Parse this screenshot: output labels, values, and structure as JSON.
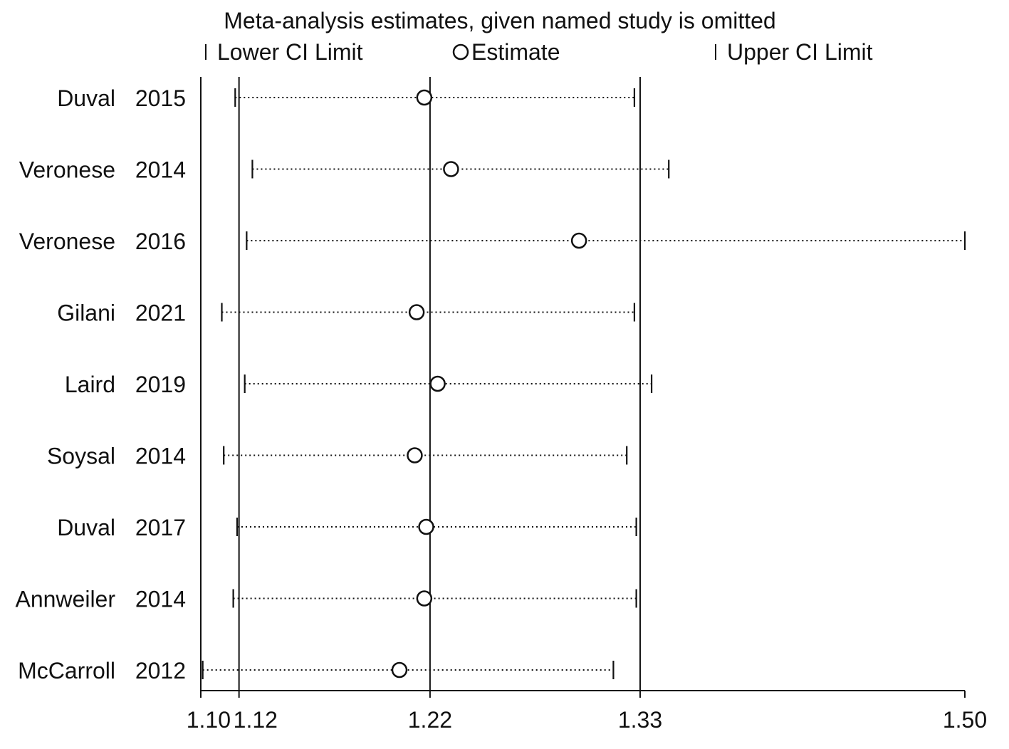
{
  "chart_data": {
    "type": "scatter",
    "title": "Meta-analysis estimates, given named study is omitted",
    "legend": {
      "lower": "Lower CI Limit",
      "estimate": "Estimate",
      "upper": "Upper CI Limit",
      "position": "top"
    },
    "x_ticks": [
      {
        "value": 1.1,
        "label": "1.10"
      },
      {
        "value": 1.12,
        "label": "1.12"
      },
      {
        "value": 1.22,
        "label": "1.22"
      },
      {
        "value": 1.33,
        "label": "1.33"
      },
      {
        "value": 1.5,
        "label": "1.50"
      }
    ],
    "xlim": [
      1.1,
      1.5
    ],
    "reference_lines": [
      1.12,
      1.22,
      1.33
    ],
    "studies": [
      {
        "name": "Duval",
        "year": "2015",
        "lower": 1.118,
        "estimate": 1.217,
        "upper": 1.327
      },
      {
        "name": "Veronese",
        "year": "2014",
        "lower": 1.127,
        "estimate": 1.231,
        "upper": 1.345
      },
      {
        "name": "Veronese",
        "year": "2016",
        "lower": 1.124,
        "estimate": 1.298,
        "upper": 1.5
      },
      {
        "name": "Gilani",
        "year": "2021",
        "lower": 1.111,
        "estimate": 1.213,
        "upper": 1.327
      },
      {
        "name": "Laird",
        "year": "2019",
        "lower": 1.123,
        "estimate": 1.224,
        "upper": 1.336
      },
      {
        "name": "Soysal",
        "year": "2014",
        "lower": 1.112,
        "estimate": 1.212,
        "upper": 1.323
      },
      {
        "name": "Duval",
        "year": "2017",
        "lower": 1.119,
        "estimate": 1.218,
        "upper": 1.328
      },
      {
        "name": "Annweiler",
        "year": "2014",
        "lower": 1.117,
        "estimate": 1.217,
        "upper": 1.328
      },
      {
        "name": "McCarroll",
        "year": "2012",
        "lower": 1.101,
        "estimate": 1.204,
        "upper": 1.316
      }
    ]
  }
}
